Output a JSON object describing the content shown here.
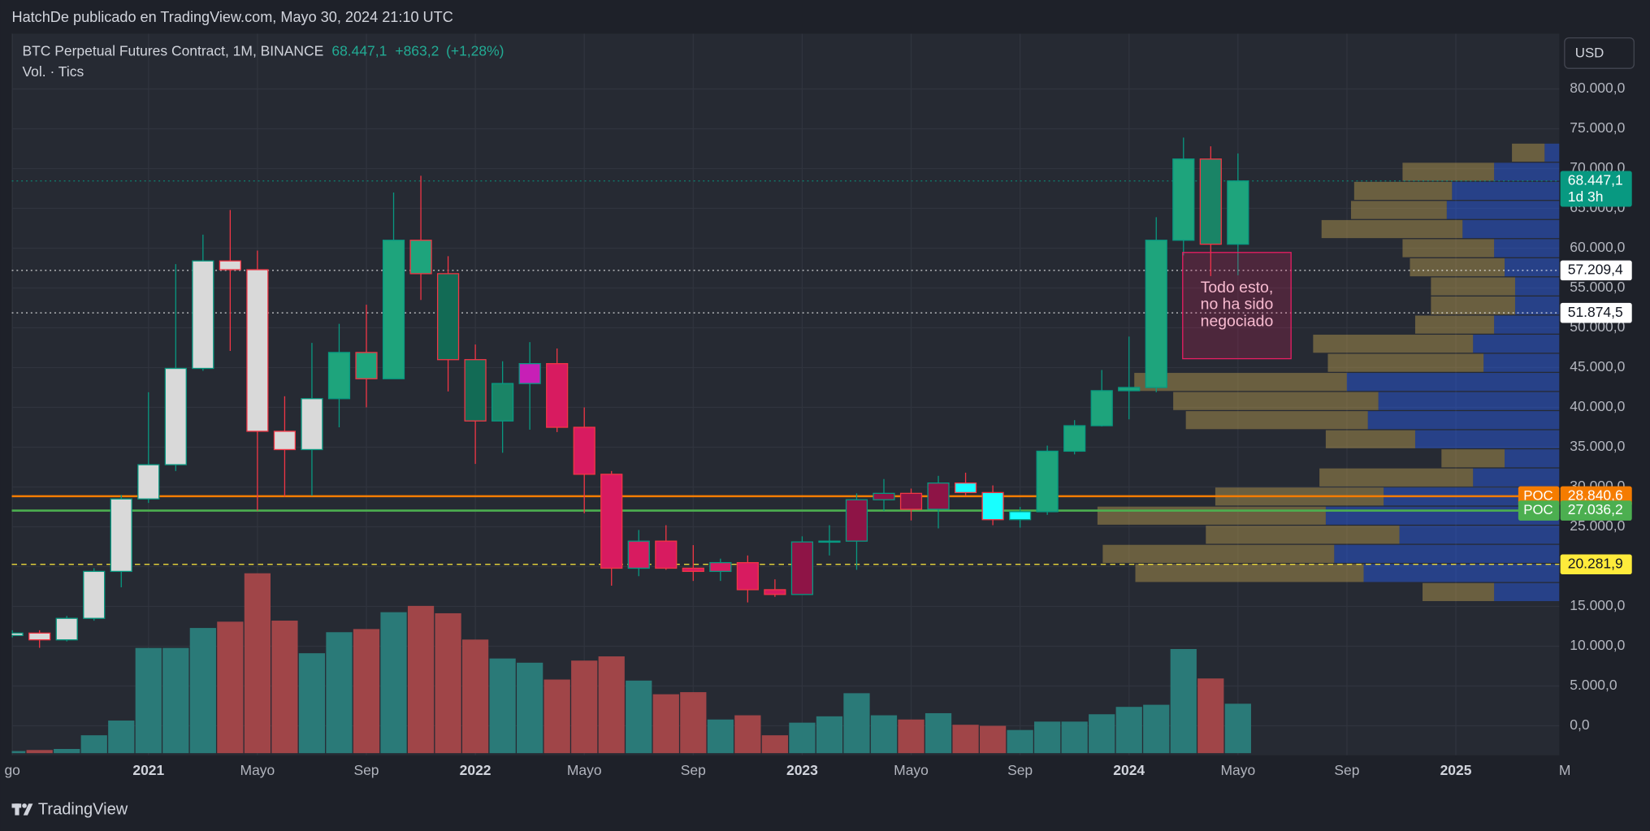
{
  "header": "HatchDe publicado en TradingView.com, Mayo 30, 2024 21:10 UTC",
  "brand": "TradingView",
  "currency": "USD",
  "chart_data": {
    "type": "candlestick",
    "title": "BTC Perpetual Futures Contract, 1M, BINANCE",
    "last_price": {
      "value": 68447.1,
      "label": "68.447,1"
    },
    "change": {
      "value": 863.2,
      "label": "+863,2"
    },
    "change_pct": {
      "value": 1.28,
      "label": "(+1,28%)"
    },
    "legend_color": "#22ab94",
    "volume_title": "Vol. · Tics",
    "categories": [
      "go",
      null,
      null,
      null,
      null,
      "2021",
      null,
      null,
      null,
      "Mayo",
      null,
      null,
      null,
      "Sep",
      null,
      null,
      null,
      "2022",
      null,
      null,
      null,
      "Mayo",
      null,
      null,
      null,
      "Sep",
      null,
      null,
      null,
      "2023",
      null,
      null,
      null,
      "Mayo",
      null,
      null,
      null,
      "Sep",
      null,
      null,
      null,
      "2024",
      null,
      null,
      null,
      "Mayo",
      null,
      null,
      null,
      "Sep",
      null,
      null,
      null,
      "2025",
      null,
      null,
      null,
      "M"
    ],
    "open": [
      11350,
      11650,
      10800,
      13500,
      19400,
      28500,
      32800,
      44900,
      58400,
      57300,
      37000,
      34700,
      41100,
      46900,
      43600,
      61000,
      56800,
      46000,
      38300,
      43000,
      45500,
      37500,
      31600,
      19800,
      23200,
      19800,
      19400,
      20500,
      17100,
      16500,
      23100,
      23200,
      28400,
      29200,
      27200,
      30500,
      29300,
      25900,
      26900,
      34500,
      37700,
      42100,
      42500,
      61000,
      71200,
      60500,
      null,
      null,
      null,
      null,
      null,
      null,
      null,
      null,
      null,
      null,
      null,
      null
    ],
    "high": [
      12000,
      12000,
      13800,
      19800,
      29000,
      41900,
      58000,
      61700,
      64800,
      59700,
      41400,
      48100,
      50500,
      52900,
      67000,
      69100,
      59000,
      47900,
      45800,
      48200,
      47400,
      40000,
      32000,
      24600,
      25200,
      22700,
      21000,
      21400,
      18400,
      23800,
      25200,
      29200,
      31000,
      29800,
      31400,
      31800,
      30200,
      27500,
      35200,
      38400,
      44700,
      48900,
      63900,
      73900,
      72800,
      71900,
      null,
      null,
      null,
      null,
      null,
      null,
      null,
      null,
      null,
      null,
      null,
      null
    ],
    "low": [
      11100,
      9800,
      10600,
      13200,
      17400,
      28000,
      32000,
      44600,
      47100,
      27000,
      28800,
      28900,
      37500,
      40000,
      43600,
      53500,
      42000,
      32900,
      34300,
      37200,
      36900,
      26700,
      17600,
      18800,
      19600,
      18200,
      18200,
      15500,
      16200,
      16500,
      21400,
      19600,
      27000,
      25800,
      24800,
      28900,
      25200,
      24900,
      26500,
      34100,
      37600,
      38500,
      41900,
      59100,
      56500,
      56600,
      null,
      null,
      null,
      null,
      null,
      null,
      null,
      null,
      null,
      null,
      null,
      null
    ],
    "close": [
      11650,
      10800,
      13500,
      19400,
      28500,
      32800,
      44900,
      58400,
      57300,
      37000,
      34700,
      41100,
      46900,
      43600,
      61000,
      56800,
      46000,
      38300,
      43000,
      45500,
      37500,
      31600,
      19800,
      23200,
      19800,
      19400,
      20500,
      17100,
      16500,
      23100,
      23200,
      28400,
      29200,
      27200,
      30500,
      29300,
      25900,
      26900,
      34500,
      37700,
      42100,
      42500,
      61000,
      71200,
      60500,
      68447.1,
      null,
      null,
      null,
      null,
      null,
      null,
      null,
      null,
      null,
      null,
      null,
      null
    ],
    "body_colors": [
      "#d9d9d9",
      "#d9d9d9",
      "#d9d9d9",
      "#d9d9d9",
      "#d9d9d9",
      "#d9d9d9",
      "#d9d9d9",
      "#d9d9d9",
      "#d9d9d9",
      "#d9d9d9",
      "#d9d9d9",
      "#d9d9d9",
      "#1ea47c",
      "#1ea47c",
      "#1ea47c",
      "#1ea47c",
      "#126b55",
      "#126b55",
      "#1a8466",
      "#c71fb6",
      "#d81b60",
      "#d81b60",
      "#d81b60",
      "#d81b60",
      "#d81b60",
      "#d81b60",
      "#d81b60",
      "#d81b60",
      "#d81b60",
      "#8e1446",
      "#1ea47c",
      "#8e1446",
      "#8e1446",
      "#8e1446",
      "#8e1446",
      "#18ffff",
      "#18ffff",
      "#18ffff",
      "#1ea47c",
      "#1ea47c",
      "#1ea47c",
      "#1ea47c",
      "#1ea47c",
      "#1ea47c",
      "#1a8466",
      "#1ea47c",
      null,
      null,
      null,
      null,
      null,
      null,
      null,
      null,
      null,
      null,
      null,
      null
    ],
    "up_border": "#089981",
    "down_border": "#f23645",
    "volume": [
      2,
      3,
      4,
      17,
      31,
      100,
      100,
      119,
      125,
      171,
      126,
      95,
      115,
      118,
      134,
      140,
      133,
      108,
      90,
      86,
      70,
      88,
      92,
      69,
      56,
      58,
      32,
      36,
      17,
      29,
      35,
      57,
      36,
      32,
      38,
      27,
      26,
      22,
      30,
      30,
      37,
      44,
      46,
      99,
      71,
      47,
      null,
      null,
      null,
      null,
      null,
      null,
      null,
      null,
      null,
      null,
      null,
      null
    ],
    "volume_up_color": "#2a7a78",
    "volume_down_color": "#a04548",
    "ylim": [
      -3700,
      86950
    ],
    "yticks": [
      {
        "value": 0,
        "label": "0,0"
      },
      {
        "value": 5000,
        "label": "5.000,0"
      },
      {
        "value": 10000,
        "label": "10.000,0"
      },
      {
        "value": 15000,
        "label": "15.000,0"
      },
      {
        "value": 20000,
        "label": "20.000,0"
      },
      {
        "value": 25000,
        "label": "25.000,0"
      },
      {
        "value": 30000,
        "label": "30.000,0"
      },
      {
        "value": 35000,
        "label": "35.000,0"
      },
      {
        "value": 40000,
        "label": "40.000,0"
      },
      {
        "value": 45000,
        "label": "45.000,0"
      },
      {
        "value": 50000,
        "label": "50.000,0"
      },
      {
        "value": 55000,
        "label": "55.000,0"
      },
      {
        "value": 60000,
        "label": "60.000,0"
      },
      {
        "value": 65000,
        "label": "65.000,0"
      },
      {
        "value": 70000,
        "label": "70.000,0"
      },
      {
        "value": 75000,
        "label": "75.000,0"
      },
      {
        "value": 80000,
        "label": "80.000,0"
      }
    ],
    "grid": true,
    "volume_profile": {
      "prices": [
        72000,
        69600,
        67200,
        64800,
        62400,
        60000,
        57600,
        55200,
        52800,
        50400,
        48000,
        45600,
        43200,
        40800,
        38400,
        36000,
        33600,
        31200,
        28800,
        26400,
        24000,
        21600,
        19200,
        16800
      ],
      "blue_values": [
        14,
        62,
        102,
        107,
        92,
        62,
        52,
        42,
        42,
        62,
        82,
        72,
        202,
        172,
        182,
        137,
        52,
        82,
        167,
        222,
        152,
        214,
        186,
        62
      ],
      "tan_values": [
        31,
        87,
        93,
        91,
        134,
        87,
        90,
        80,
        80,
        75,
        152,
        148,
        202,
        195,
        173,
        85,
        60,
        146,
        160,
        217,
        184,
        220,
        217,
        68
      ],
      "blue_color": "rgba(41,98,255,0.42)",
      "tan_color": "rgba(190,160,80,0.45)"
    },
    "price_lines": [
      {
        "value": 68447.1,
        "label": "68.447,1",
        "sub": "1d 3h",
        "color": "#089981",
        "text_color": "#ffffff",
        "style": "dotted"
      },
      {
        "value": 57209.4,
        "label": "57.209,4",
        "color": "#ffffff",
        "text_color": "#131722",
        "style": "dotted"
      },
      {
        "value": 51874.5,
        "label": "51.874,5",
        "color": "#ffffff",
        "text_color": "#131722",
        "style": "dotted"
      },
      {
        "value": 28840.6,
        "label": "28.840,6",
        "tag": "POC",
        "color": "#f57c00",
        "text_color": "#ffffff",
        "style": "solid"
      },
      {
        "value": 27036.2,
        "label": "27.036,2",
        "tag": "POC",
        "color": "#4caf50",
        "text_color": "#ffffff",
        "style": "solid"
      },
      {
        "value": 20281.9,
        "label": "20.281,9",
        "color": "#ffeb3b",
        "text_color": "#131722",
        "style": "dashed"
      }
    ],
    "annotation": {
      "lines": [
        "Todo esto,",
        "no ha sido",
        "negociado"
      ]
    }
  }
}
